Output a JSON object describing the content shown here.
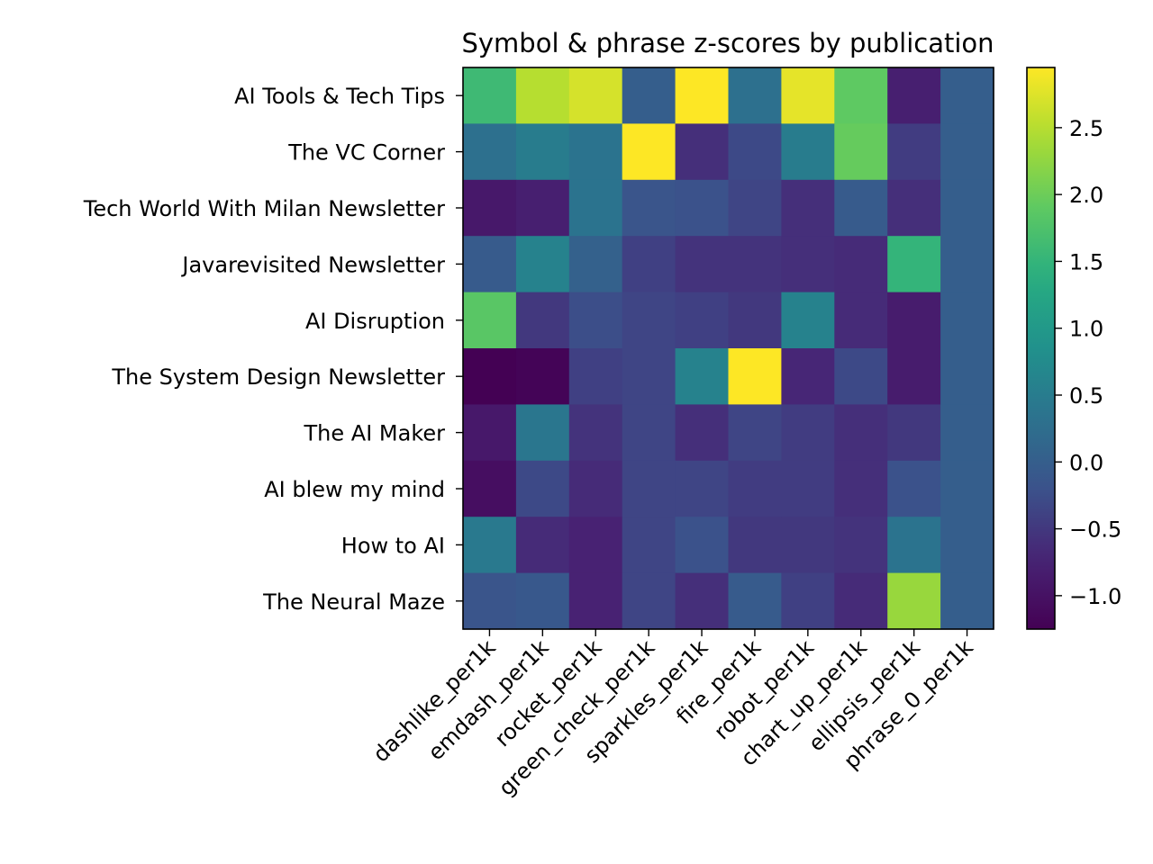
{
  "chart_data": {
    "type": "heatmap",
    "title": "Symbol & phrase z-scores by publication",
    "xlabel": "",
    "ylabel": "",
    "x": [
      "dashlike_per1k",
      "emdash_per1k",
      "rocket_per1k",
      "green_check_per1k",
      "sparkles_per1k",
      "fire_per1k",
      "robot_per1k",
      "chart_up_per1k",
      "ellipsis_per1k",
      "phrase_0_per1k"
    ],
    "y": [
      "AI Tools & Tech Tips",
      "The VC Corner",
      "Tech World With Milan Newsletter",
      "Javarevisited Newsletter",
      "AI Disruption",
      "The System Design Newsletter",
      "The AI Maker",
      "AI blew my mind",
      "How to AI",
      "The Neural Maze"
    ],
    "values": [
      [
        1.6,
        2.5,
        2.7,
        0.0,
        2.95,
        0.3,
        2.8,
        1.9,
        -0.8,
        0.0
      ],
      [
        0.3,
        0.5,
        0.35,
        2.95,
        -0.6,
        -0.3,
        0.5,
        1.95,
        -0.45,
        0.0
      ],
      [
        -0.9,
        -0.8,
        0.35,
        -0.15,
        -0.2,
        -0.35,
        -0.6,
        -0.05,
        -0.6,
        0.0
      ],
      [
        -0.05,
        0.6,
        0.05,
        -0.4,
        -0.55,
        -0.55,
        -0.6,
        -0.65,
        1.5,
        0.0
      ],
      [
        1.85,
        -0.5,
        -0.25,
        -0.35,
        -0.4,
        -0.5,
        0.6,
        -0.65,
        -0.85,
        0.0
      ],
      [
        -1.25,
        -1.2,
        -0.4,
        -0.35,
        0.6,
        2.95,
        -0.7,
        -0.3,
        -0.85,
        0.0
      ],
      [
        -0.9,
        0.4,
        -0.55,
        -0.35,
        -0.6,
        -0.35,
        -0.45,
        -0.6,
        -0.5,
        0.0
      ],
      [
        -1.05,
        -0.3,
        -0.65,
        -0.35,
        -0.35,
        -0.45,
        -0.45,
        -0.6,
        -0.2,
        0.0
      ],
      [
        0.45,
        -0.65,
        -0.75,
        -0.35,
        -0.2,
        -0.5,
        -0.5,
        -0.55,
        0.35,
        0.0
      ],
      [
        -0.15,
        -0.1,
        -0.75,
        -0.35,
        -0.6,
        -0.05,
        -0.4,
        -0.65,
        2.3,
        0.0
      ]
    ],
    "vmin": -1.25,
    "vmax": 2.95,
    "colormap": "viridis",
    "colorbar_ticks": [
      -1.0,
      -0.5,
      0.0,
      0.5,
      1.0,
      1.5,
      2.0,
      2.5
    ],
    "colorbar_tick_labels": [
      "−1.0",
      "−0.5",
      "0.0",
      "0.5",
      "1.0",
      "1.5",
      "2.0",
      "2.5"
    ],
    "grid": false,
    "legend": "none"
  }
}
